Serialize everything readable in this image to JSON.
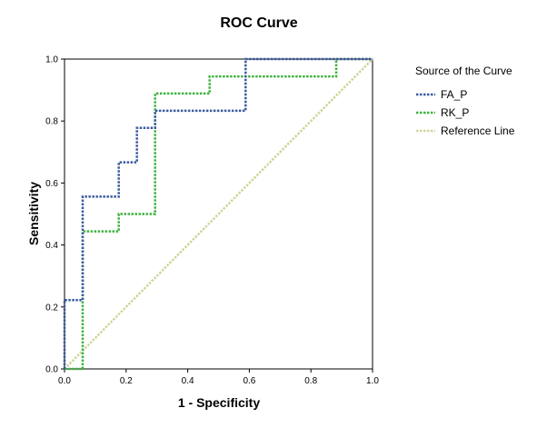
{
  "chart_data": {
    "type": "line",
    "title": "ROC Curve",
    "xlabel": "1 - Specificity",
    "ylabel": "Sensitivity",
    "xlim": [
      0,
      1
    ],
    "ylim": [
      0,
      1
    ],
    "x_ticks": [
      "0.0",
      "0.2",
      "0.4",
      "0.6",
      "0.8",
      "1.0"
    ],
    "y_ticks": [
      "0.0",
      "0.2",
      "0.4",
      "0.6",
      "0.8",
      "1.0"
    ],
    "grid": false,
    "legend": {
      "title": "Source of the Curve",
      "position": "right"
    },
    "series": [
      {
        "name": "FA_P",
        "color": "#3a5ba0",
        "style": "dotted",
        "x": [
          0,
          0,
          0.059,
          0.059,
          0.176,
          0.176,
          0.235,
          0.235,
          0.294,
          0.294,
          0.588,
          0.588,
          1.0
        ],
        "y": [
          0,
          0.222,
          0.222,
          0.556,
          0.556,
          0.667,
          0.667,
          0.778,
          0.778,
          0.833,
          0.833,
          1.0,
          1.0
        ]
      },
      {
        "name": "RK_P",
        "color": "#3db33d",
        "style": "dotted",
        "x": [
          0,
          0.059,
          0.059,
          0.176,
          0.176,
          0.294,
          0.294,
          0.471,
          0.471,
          0.882,
          0.882,
          1.0
        ],
        "y": [
          0,
          0,
          0.444,
          0.444,
          0.5,
          0.5,
          0.889,
          0.889,
          0.944,
          0.944,
          1.0,
          1.0
        ]
      },
      {
        "name": "Reference Line",
        "color": "#d2d39a",
        "style": "dotted",
        "x": [
          0,
          1
        ],
        "y": [
          0,
          1
        ]
      }
    ]
  }
}
